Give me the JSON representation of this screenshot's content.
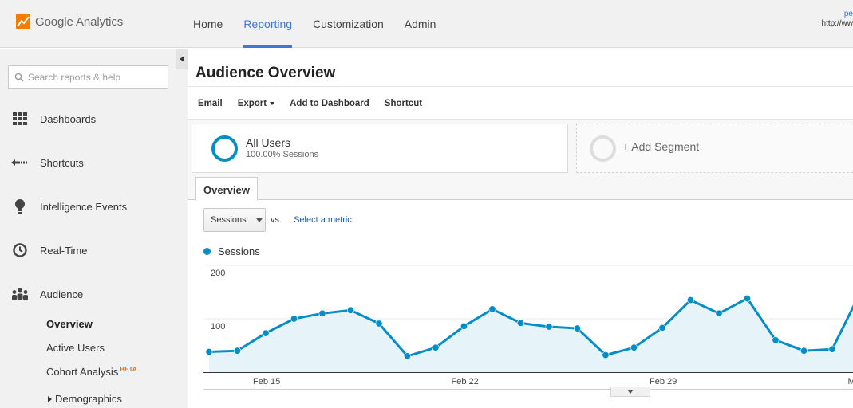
{
  "app": {
    "name": "Google Analytics"
  },
  "nav": {
    "tabs": [
      {
        "label": "Home",
        "active": false
      },
      {
        "label": "Reporting",
        "active": true
      },
      {
        "label": "Customization",
        "active": false
      },
      {
        "label": "Admin",
        "active": false
      }
    ],
    "account_name": "pe",
    "account_url": "http://ww"
  },
  "sidebar": {
    "search_placeholder": "Search reports & help",
    "items": [
      {
        "label": "Dashboards",
        "icon": "grid-icon"
      },
      {
        "label": "Shortcuts",
        "icon": "shortcut-arrow-icon"
      },
      {
        "label": "Intelligence Events",
        "icon": "lightbulb-icon"
      },
      {
        "label": "Real-Time",
        "icon": "clock-icon"
      },
      {
        "label": "Audience",
        "icon": "people-icon"
      }
    ],
    "audience_sub": {
      "overview": "Overview",
      "active_users": "Active Users",
      "cohort_analysis": "Cohort Analysis",
      "beta": "BETA",
      "demographics": "Demographics"
    }
  },
  "main": {
    "title": "Audience Overview",
    "actions": {
      "email": "Email",
      "export": "Export",
      "add_to_dashboard": "Add to Dashboard",
      "shortcut": "Shortcut"
    },
    "segment": {
      "name": "All Users",
      "sub": "100.00% Sessions"
    },
    "add_segment": "+ Add Segment",
    "tab": "Overview",
    "metric": {
      "selected": "Sessions",
      "vs": "vs.",
      "select_metric": "Select a metric"
    },
    "legend": "Sessions"
  },
  "colors": {
    "accent": "#3b78d8",
    "series": "#058dc7",
    "fill": "#e6f3f9"
  },
  "chart_data": {
    "type": "area",
    "series": [
      {
        "name": "Sessions",
        "values": [
          38,
          40,
          73,
          100,
          110,
          116,
          91,
          30,
          46,
          86,
          118,
          92,
          85,
          82,
          32,
          46,
          83,
          135,
          110,
          138,
          60,
          40,
          43,
          150
        ]
      }
    ],
    "x_tick_labels": [
      {
        "label": "Feb 15",
        "index": 2
      },
      {
        "label": "Feb 22",
        "index": 9
      },
      {
        "label": "Feb 29",
        "index": 16
      },
      {
        "label": "M",
        "index": 23
      }
    ],
    "y_tick_labels": [
      "200",
      "100"
    ],
    "y_ticks": [
      200,
      100
    ],
    "ylim": [
      0,
      200
    ],
    "grid": true
  }
}
